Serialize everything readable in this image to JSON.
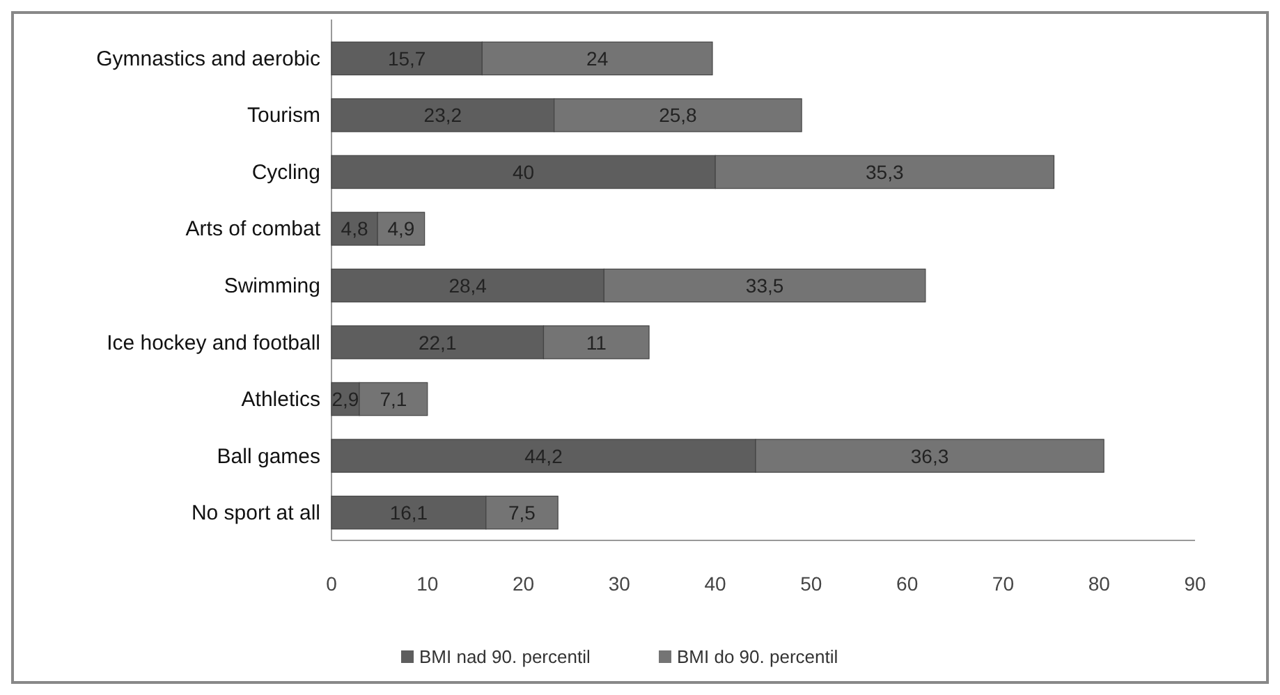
{
  "chart_data": {
    "type": "bar",
    "orientation": "horizontal",
    "stacked": true,
    "categories": [
      "Gymnastics and aerobic",
      "Tourism",
      "Cycling",
      "Arts of combat",
      "Swimming",
      "Ice hockey and football",
      "Athletics",
      "Ball games",
      "No sport at all"
    ],
    "series": [
      {
        "name": "BMI nad 90. percentil",
        "color": "#5e5e5e",
        "values": [
          15.7,
          23.2,
          40,
          4.8,
          28.4,
          22.1,
          2.9,
          44.2,
          16.1
        ],
        "value_labels": [
          "15,7",
          "23,2",
          "40",
          "4,8",
          "28,4",
          "22,1",
          "2,9",
          "44,2",
          "16,1"
        ]
      },
      {
        "name": "BMI do 90. percentil",
        "color": "#747474",
        "values": [
          24,
          25.8,
          35.3,
          4.9,
          33.5,
          11,
          7.1,
          36.3,
          7.5
        ],
        "value_labels": [
          "24",
          "25,8",
          "35,3",
          "4,9",
          "33,5",
          "11",
          "7,1",
          "36,3",
          "7,5"
        ]
      }
    ],
    "xlim": [
      0,
      90
    ],
    "xticks": [
      0,
      10,
      20,
      30,
      40,
      50,
      60,
      70,
      80,
      90
    ],
    "grid": false,
    "legend": "bottom"
  }
}
